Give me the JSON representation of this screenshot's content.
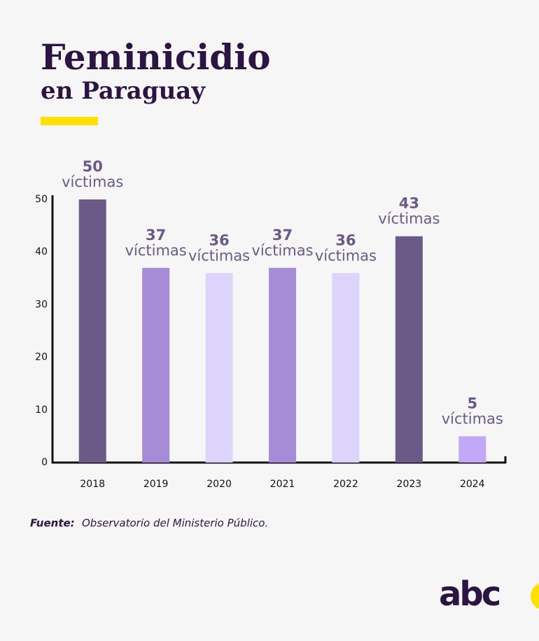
{
  "chart_data": {
    "type": "bar",
    "title": "Feminicidio",
    "subtitle": "en Paraguay",
    "categories": [
      "2018",
      "2019",
      "2020",
      "2021",
      "2022",
      "2023",
      "2024"
    ],
    "values": [
      50,
      37,
      36,
      37,
      36,
      43,
      5
    ],
    "value_unit": "víctimas",
    "colors": [
      "#6b5a87",
      "#a68bd6",
      "#dcd4fb",
      "#a68bd6",
      "#dcd4fb",
      "#6b5a87",
      "#c2a8f7"
    ],
    "ylim": [
      0,
      50
    ],
    "yticks": [
      0,
      10,
      20,
      30,
      40,
      50
    ],
    "grid": false,
    "source": {
      "label": "Fuente:",
      "text": "Observatorio del Ministerio Público."
    },
    "logo": "abc"
  }
}
